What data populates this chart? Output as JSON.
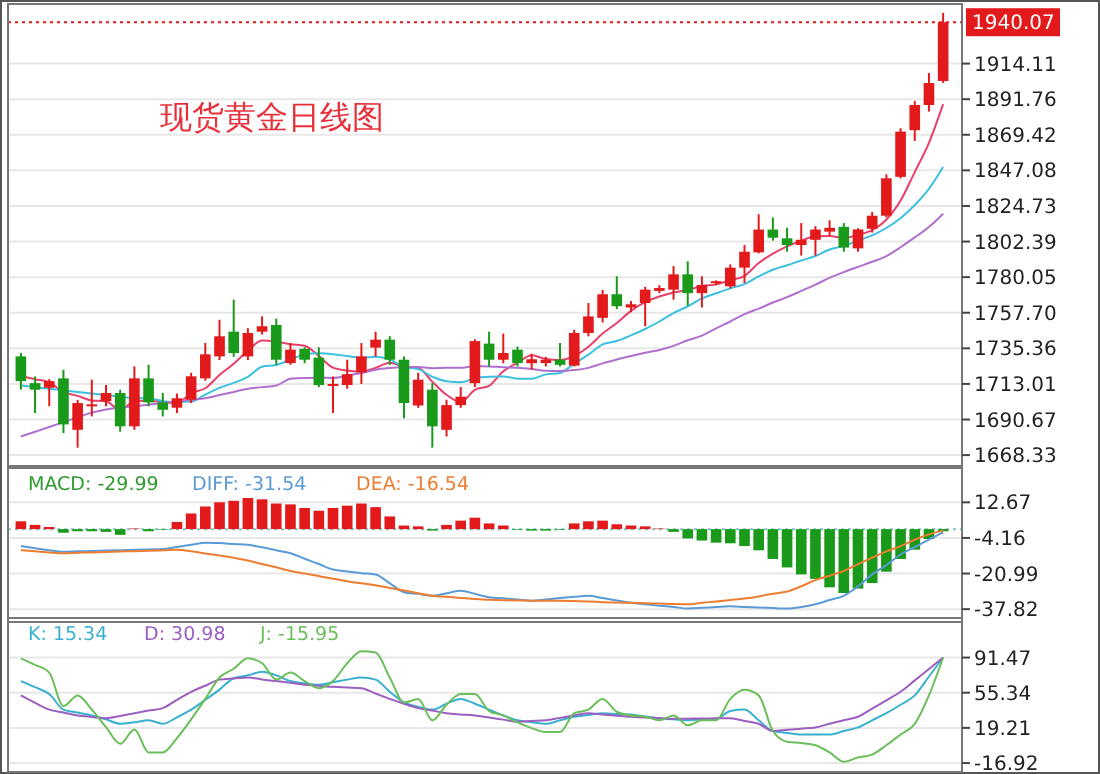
{
  "chart_data": [
    {
      "type": "candlestick",
      "title": "现货黄金日线图",
      "tick_labels": "y",
      "grid": "y",
      "categories": [
        null,
        null,
        null,
        null,
        null,
        null,
        null,
        null,
        null,
        null,
        null,
        null,
        null,
        null,
        null,
        null,
        null,
        null,
        null,
        null,
        null,
        null,
        null,
        null,
        null,
        null,
        null,
        null,
        null,
        null,
        null,
        null,
        null,
        null,
        null,
        null,
        null,
        null,
        null,
        null,
        null,
        null,
        null,
        null,
        null,
        null,
        null,
        null,
        null,
        null,
        null,
        null,
        null,
        null,
        null,
        null,
        null,
        null,
        null,
        null,
        null,
        null,
        null,
        null,
        null,
        null
      ],
      "ohlc": [
        [
          1730.3,
          1732.4,
          1709.4,
          1714.8
        ],
        [
          1713.5,
          1717.7,
          1694.7,
          1709.4
        ],
        [
          1710.6,
          1716,
          1699,
          1714.8
        ],
        [
          1716.5,
          1721.9,
          1682.1,
          1687.6
        ],
        [
          1684.2,
          1703,
          1673,
          1701
        ],
        [
          1699.7,
          1715.7,
          1692.6,
          1700.2
        ],
        [
          1702.2,
          1712.3,
          1699,
          1707.3
        ],
        [
          1707.3,
          1709.4,
          1683,
          1686.4
        ],
        [
          1686.4,
          1724,
          1684.2,
          1716.5
        ],
        [
          1716.5,
          1725,
          1699,
          1701.4
        ],
        [
          1701.4,
          1707.3,
          1692.6,
          1696.8
        ],
        [
          1698.1,
          1707,
          1694.7,
          1704
        ],
        [
          1703.1,
          1720,
          1701,
          1717.8
        ],
        [
          1716.5,
          1738.7,
          1715,
          1731.6
        ],
        [
          1730.3,
          1753.3,
          1728,
          1742.9
        ],
        [
          1745.8,
          1765.9,
          1730,
          1732.4
        ],
        [
          1730.3,
          1748,
          1728,
          1745
        ],
        [
          1745.8,
          1755.4,
          1744,
          1749.2
        ],
        [
          1750,
          1754,
          1725,
          1728.2
        ],
        [
          1726.1,
          1738.7,
          1725,
          1734.5
        ],
        [
          1735,
          1736,
          1726,
          1728.2
        ],
        [
          1729.5,
          1736,
          1711,
          1712.3
        ],
        [
          1712.3,
          1717.7,
          1694.7,
          1713
        ],
        [
          1712.3,
          1728.2,
          1710,
          1719.1
        ],
        [
          1720.3,
          1738.7,
          1713,
          1730.3
        ],
        [
          1735.8,
          1745.8,
          1730.3,
          1740.8
        ],
        [
          1740.8,
          1743,
          1725,
          1728.2
        ],
        [
          1728.2,
          1730.3,
          1691.4,
          1701
        ],
        [
          1699.5,
          1720,
          1698,
          1715.7
        ],
        [
          1709.4,
          1713.5,
          1673,
          1686.4
        ],
        [
          1684.2,
          1703.1,
          1680,
          1699.7
        ],
        [
          1699.7,
          1711,
          1698,
          1705
        ],
        [
          1713.5,
          1741,
          1711,
          1739.9
        ],
        [
          1738.3,
          1745.8,
          1724,
          1728.2
        ],
        [
          1728.2,
          1744.6,
          1726,
          1732.4
        ],
        [
          1734.5,
          1736.5,
          1724,
          1726.1
        ],
        [
          1726,
          1732,
          1722,
          1728.5
        ],
        [
          1726.1,
          1730,
          1724,
          1728.2
        ],
        [
          1728.2,
          1738.7,
          1724,
          1725
        ],
        [
          1724.5,
          1747,
          1724,
          1745
        ],
        [
          1745,
          1763.8,
          1742.9,
          1755.4
        ],
        [
          1754.5,
          1772,
          1751.6,
          1769.3
        ],
        [
          1769.3,
          1780.6,
          1760,
          1761.8
        ],
        [
          1761,
          1765,
          1758,
          1763
        ],
        [
          1763.8,
          1774,
          1749.2,
          1772.2
        ],
        [
          1771.4,
          1775,
          1770,
          1773.2
        ],
        [
          1772.2,
          1787,
          1765.9,
          1781.8
        ],
        [
          1781.8,
          1790,
          1762,
          1770
        ],
        [
          1770,
          1780.6,
          1761,
          1775.1
        ],
        [
          1776.5,
          1778,
          1775,
          1777.5
        ],
        [
          1774.3,
          1788,
          1773,
          1786
        ],
        [
          1786,
          1800.2,
          1776.3,
          1796
        ],
        [
          1795.6,
          1819.5,
          1795,
          1809.9
        ],
        [
          1809.9,
          1817.5,
          1803,
          1804.8
        ],
        [
          1804.4,
          1811,
          1796,
          1800.2
        ],
        [
          1800.2,
          1814,
          1793.6,
          1803.5
        ],
        [
          1803.5,
          1812,
          1793.6,
          1809.9
        ],
        [
          1808.6,
          1815.7,
          1806,
          1811
        ],
        [
          1811.6,
          1814,
          1796,
          1798.6
        ],
        [
          1798.1,
          1810.8,
          1796,
          1810
        ],
        [
          1810.4,
          1821,
          1808,
          1818.6
        ],
        [
          1818.6,
          1844.6,
          1817.5,
          1842.1
        ],
        [
          1843,
          1873.5,
          1842,
          1871.4
        ],
        [
          1872.3,
          1890.6,
          1865.5,
          1888.1
        ],
        [
          1888.1,
          1908.2,
          1884,
          1901.9
        ],
        [
          1903.2,
          1945.9,
          1902,
          1940.07
        ]
      ],
      "colors": [
        "#1a9a1a",
        "#1a9a1a",
        "#e31a1c",
        "#1a9a1a",
        "#e31a1c",
        "#e31a1c",
        "#e31a1c",
        "#1a9a1a",
        "#e31a1c",
        "#1a9a1a",
        "#1a9a1a",
        "#e31a1c",
        "#e31a1c",
        "#e31a1c",
        "#e31a1c",
        "#1a9a1a",
        "#e31a1c",
        "#e31a1c",
        "#1a9a1a",
        "#e31a1c",
        "#1a9a1a",
        "#1a9a1a",
        "#e31a1c",
        "#e31a1c",
        "#e31a1c",
        "#e31a1c",
        "#1a9a1a",
        "#1a9a1a",
        "#e31a1c",
        "#1a9a1a",
        "#e31a1c",
        "#e31a1c",
        "#e31a1c",
        "#1a9a1a",
        "#e31a1c",
        "#1a9a1a",
        "#e31a1c",
        "#e31a1c",
        "#1a9a1a",
        "#e31a1c",
        "#e31a1c",
        "#e31a1c",
        "#1a9a1a",
        "#e31a1c",
        "#e31a1c",
        "#e31a1c",
        "#e31a1c",
        "#1a9a1a",
        "#e31a1c",
        "#e31a1c",
        "#e31a1c",
        "#e31a1c",
        "#e31a1c",
        "#1a9a1a",
        "#1a9a1a",
        "#e31a1c",
        "#e31a1c",
        "#e31a1c",
        "#1a9a1a",
        "#e31a1c",
        "#e31a1c",
        "#e31a1c",
        "#e31a1c",
        "#e31a1c",
        "#e31a1c",
        "#e31a1c"
      ],
      "series": [
        {
          "type": "line",
          "color": "#e8406a",
          "values": [
            1718,
            1716,
            1714,
            1708,
            1705.5,
            1702.6,
            1702.2,
            1696.5,
            1702.3,
            1702.4,
            1701.7,
            1701,
            1707.3,
            1710.3,
            1718.6,
            1725.7,
            1733.9,
            1740.2,
            1739.5,
            1737.9,
            1737,
            1730.5,
            1723.2,
            1721.4,
            1720.6,
            1723.1,
            1726.3,
            1723.9,
            1723.2,
            1714.4,
            1706.2,
            1701.6,
            1709.3,
            1711.8,
            1721,
            1726.3,
            1731,
            1728.7,
            1728,
            1730.6,
            1736.4,
            1744.6,
            1751.3,
            1758.9,
            1764.3,
            1767.9,
            1770.4,
            1772,
            1774.5,
            1775.5,
            1778.1,
            1780.9,
            1788.9,
            1794.8,
            1799.4,
            1802.9,
            1805.7,
            1805.9,
            1804.6,
            1806.6,
            1809.6,
            1816.1,
            1828.1,
            1846,
            1864.4,
            1888.7
          ]
        },
        {
          "type": "line",
          "color": "#3cc0e0",
          "values": [
            1712,
            1711,
            1710,
            1709,
            1708,
            1707,
            1706,
            1705,
            1704,
            1704,
            1702.2,
            1701.6,
            1701.9,
            1706.3,
            1710.5,
            1713.7,
            1717.5,
            1723.8,
            1724.9,
            1728.3,
            1731.4,
            1732.2,
            1731.7,
            1730.5,
            1729.3,
            1730.1,
            1728.4,
            1723.6,
            1722.3,
            1717.5,
            1714.7,
            1714,
            1716.6,
            1717.5,
            1717.7,
            1716.3,
            1716.3,
            1719,
            1719.9,
            1725.8,
            1731.4,
            1737.8,
            1740,
            1743.5,
            1747.5,
            1752.2,
            1757.5,
            1761.7,
            1766.7,
            1769.9,
            1773,
            1775.7,
            1780.5,
            1784.7,
            1787.5,
            1790.5,
            1793.3,
            1797.4,
            1799.7,
            1803,
            1806.3,
            1810.9,
            1817,
            1825.3,
            1835.5,
            1849.2
          ]
        },
        {
          "type": "line",
          "color": "#b070d0",
          "values": [
            1680,
            1683,
            1686,
            1689,
            1692,
            1695,
            1697,
            1698,
            1699,
            1700,
            1701,
            1702,
            1703,
            1704,
            1706,
            1708,
            1710,
            1711,
            1712,
            1716.2,
            1716.8,
            1716.9,
            1716.8,
            1718.4,
            1719.9,
            1721.9,
            1723,
            1723.7,
            1723.6,
            1722.9,
            1723.1,
            1723.1,
            1724.2,
            1724,
            1723.5,
            1723.2,
            1722.4,
            1721.3,
            1721.1,
            1721.7,
            1723.1,
            1725.9,
            1728.3,
            1730.5,
            1732.6,
            1734.3,
            1736.9,
            1740.4,
            1743.3,
            1747.9,
            1752.2,
            1756.8,
            1760.3,
            1764.1,
            1767.5,
            1771.4,
            1775.4,
            1779.6,
            1783.2,
            1786.5,
            1789.7,
            1793.3,
            1798.8,
            1805,
            1811.5,
            1819.9
          ]
        }
      ],
      "ylim": [
        1664,
        1949
      ],
      "yticks": [
        1668.33,
        1690.67,
        1713.01,
        1735.36,
        {
          "value": 1757.7,
          "label": "1757.70"
        },
        1780.05,
        1802.39,
        1824.73,
        1847.08,
        1869.42,
        1891.76,
        1914.11
      ],
      "ref_lines": [
        {
          "axis": "y",
          "value": 1940.07,
          "label": "1940.07",
          "color": "#e31a1c",
          "line_style": "dotted"
        }
      ]
    },
    {
      "type": "bar",
      "tick_labels": "y",
      "grid": "y",
      "legend": "top left",
      "categories": [
        null,
        null,
        null,
        null,
        null,
        null,
        null,
        null,
        null,
        null,
        null,
        null,
        null,
        null,
        null,
        null,
        null,
        null,
        null,
        null,
        null,
        null,
        null,
        null,
        null,
        null,
        null,
        null,
        null,
        null,
        null,
        null,
        null,
        null,
        null,
        null,
        null,
        null,
        null,
        null,
        null,
        null,
        null,
        null,
        null,
        null,
        null,
        null,
        null,
        null,
        null,
        null,
        null,
        null,
        null,
        null,
        null,
        null,
        null,
        null,
        null,
        null,
        null,
        null,
        null,
        null
      ],
      "series": [
        {
          "name": "MACD: -29.99",
          "type": "bar",
          "color": "#2e9a2e",
          "values": [
            3.7,
            2,
            1,
            -1.7,
            -1,
            -1,
            -1.3,
            -2.7,
            0.3,
            -1,
            -0.3,
            3.4,
            7.4,
            10.7,
            12.7,
            13.4,
            14.7,
            14.1,
            12.1,
            11.7,
            10,
            8.7,
            10,
            11.1,
            12.1,
            10.4,
            6,
            1.7,
            1.3,
            -0.7,
            2,
            4,
            5.4,
            2.7,
            1.7,
            -0.3,
            -0.7,
            -0.7,
            -0.3,
            2.7,
            3.7,
            4,
            2.3,
            1.7,
            1.3,
            0.3,
            -1.3,
            -4.4,
            -5.4,
            -6.4,
            -6.7,
            -8,
            -10,
            -14.1,
            -18.1,
            -21.4,
            -23.5,
            -27.5,
            -30.2,
            -28.1,
            -25.5,
            -20.1,
            -14.1,
            -9.7,
            -4.7,
            -1
          ],
          "colors": [
            "#e31a1c",
            "#e31a1c",
            "#e31a1c",
            "#1a9a1a",
            "#1a9a1a",
            "#1a9a1a",
            "#1a9a1a",
            "#1a9a1a",
            "#e31a1c",
            "#1a9a1a",
            "#1a9a1a",
            "#e31a1c",
            "#e31a1c",
            "#e31a1c",
            "#e31a1c",
            "#e31a1c",
            "#e31a1c",
            "#e31a1c",
            "#e31a1c",
            "#e31a1c",
            "#e31a1c",
            "#e31a1c",
            "#e31a1c",
            "#e31a1c",
            "#e31a1c",
            "#e31a1c",
            "#e31a1c",
            "#e31a1c",
            "#e31a1c",
            "#1a9a1a",
            "#e31a1c",
            "#e31a1c",
            "#e31a1c",
            "#e31a1c",
            "#e31a1c",
            "#1a9a1a",
            "#1a9a1a",
            "#1a9a1a",
            "#1a9a1a",
            "#e31a1c",
            "#e31a1c",
            "#e31a1c",
            "#e31a1c",
            "#e31a1c",
            "#e31a1c",
            "#e31a1c",
            "#1a9a1a",
            "#1a9a1a",
            "#1a9a1a",
            "#1a9a1a",
            "#1a9a1a",
            "#1a9a1a",
            "#1a9a1a",
            "#1a9a1a",
            "#1a9a1a",
            "#1a9a1a",
            "#1a9a1a",
            "#1a9a1a",
            "#1a9a1a",
            "#1a9a1a",
            "#1a9a1a",
            "#1a9a1a",
            "#1a9a1a",
            "#1a9a1a",
            "#1a9a1a",
            "#1a9a1a"
          ]
        },
        {
          "name": "DIFF: -31.54",
          "type": "line",
          "color": "#5b9bd5",
          "values": [
            -8,
            -9,
            -10,
            -10.7,
            -10.5,
            -10.3,
            -10.1,
            -10,
            -9.8,
            -9.6,
            -9.4,
            -8.4,
            -7.4,
            -6.4,
            -6.6,
            -7,
            -7.4,
            -8.6,
            -10,
            -11.4,
            -14,
            -16.5,
            -19.1,
            -20,
            -20.8,
            -21.4,
            -25.6,
            -29.8,
            -30.6,
            -31.5,
            -30.3,
            -29.1,
            -30.6,
            -32.2,
            -32.7,
            -33.3,
            -33.8,
            -33.2,
            -32.6,
            -32,
            -31.5,
            -32.6,
            -33.7,
            -34.8,
            -35.5,
            -36.2,
            -36.8,
            -37.5,
            -37.2,
            -36.8,
            -36.5,
            -36.8,
            -37,
            -37.3,
            -37.5,
            -36.8,
            -35.5,
            -33.5,
            -31.5,
            -27,
            -21.4,
            -17,
            -12,
            -8.5,
            -5,
            -1.5
          ]
        },
        {
          "name": "DEA: -16.54",
          "type": "line",
          "color": "#ed7d31",
          "values": [
            -10,
            -10.5,
            -11,
            -11.4,
            -11.2,
            -11,
            -10.8,
            -10.6,
            -10.4,
            -10.2,
            -10,
            -9.7,
            -10.5,
            -11.5,
            -12.5,
            -13.5,
            -14.8,
            -16.5,
            -18,
            -19.8,
            -21,
            -22.2,
            -23.4,
            -24.6,
            -25.6,
            -26.5,
            -27.8,
            -29,
            -30.3,
            -31.5,
            -32,
            -32.5,
            -33,
            -33.4,
            -33.6,
            -33.7,
            -33.8,
            -33.8,
            -33.8,
            -34,
            -34.2,
            -34.5,
            -34.7,
            -34.8,
            -35,
            -35.2,
            -35.4,
            -35.5,
            -34.8,
            -34.2,
            -33.5,
            -32.8,
            -31.8,
            -30.5,
            -29.5,
            -27,
            -24.1,
            -22,
            -19.8,
            -16.5,
            -13.5,
            -10.5,
            -8,
            -5,
            -2.5,
            -0.7
          ]
        }
      ],
      "ylim": [
        -42,
        27
      ],
      "yticks": [
        12.67,
        -4.16,
        -20.99,
        -37.82
      ],
      "ref_lines": [
        {
          "axis": "y",
          "value": 0,
          "color": "#7fc8c8",
          "line_style": "dotted"
        }
      ]
    },
    {
      "type": "line",
      "tick_labels": "y",
      "grid": "y",
      "legend": "top left",
      "categories": [
        null,
        null,
        null,
        null,
        null,
        null,
        null,
        null,
        null,
        null,
        null,
        null,
        null,
        null,
        null,
        null,
        null,
        null,
        null,
        null,
        null,
        null,
        null,
        null,
        null,
        null,
        null,
        null,
        null,
        null,
        null,
        null,
        null,
        null,
        null,
        null,
        null,
        null,
        null,
        null,
        null,
        null,
        null,
        null,
        null,
        null,
        null,
        null,
        null,
        null,
        null,
        null,
        null,
        null,
        null,
        null,
        null,
        null,
        null,
        null,
        null,
        null,
        null,
        null,
        null,
        null
      ],
      "series": [
        {
          "name": "K: 15.34",
          "color": "#3ab0d0",
          "values": [
            67.3,
            61,
            54,
            38,
            35,
            32,
            28,
            23.4,
            25,
            27,
            23.4,
            30,
            38,
            48,
            58.5,
            70.2,
            73.2,
            76.8,
            73.2,
            67.3,
            65,
            63.6,
            66,
            68.8,
            71,
            68.8,
            56.3,
            45.3,
            41,
            38,
            44,
            49,
            44,
            38,
            32,
            27,
            25,
            23.4,
            27,
            30.7,
            32.5,
            34.3,
            33.5,
            32.9,
            31,
            29.2,
            28,
            27,
            27.8,
            28.5,
            36.5,
            38,
            27,
            16,
            14,
            12.4,
            12.4,
            12.4,
            16,
            19.7,
            27,
            34.3,
            43,
            52.6,
            72,
            91.5
          ]
        },
        {
          "name": "D: 30.98",
          "color": "#9a5fc0",
          "values": [
            52.6,
            45,
            38,
            35,
            32,
            30.5,
            29.2,
            31.5,
            34.3,
            37,
            39.5,
            48,
            56.3,
            62.5,
            68.8,
            70,
            71,
            69,
            67.3,
            65.5,
            63.6,
            62.5,
            61.4,
            60.7,
            60,
            54.5,
            49,
            44,
            39.5,
            37,
            34.3,
            33,
            32,
            29.8,
            27.7,
            25.6,
            26.3,
            27,
            29.5,
            32,
            34.3,
            33,
            31.8,
            30.7,
            30,
            29.2,
            28.5,
            28.7,
            28.9,
            29,
            29.2,
            26.3,
            23.4,
            16,
            17.2,
            18.4,
            19.7,
            23.4,
            27,
            30.7,
            39,
            47.5,
            56.3,
            68,
            79.8,
            91.5
          ]
        },
        {
          "name": "J: -15.95",
          "color": "#6abf5a",
          "values": [
            90.7,
            84,
            76,
            41.6,
            52.6,
            38,
            20,
            2.8,
            17.5,
            -6,
            -6,
            8.7,
            28,
            49,
            71,
            80,
            90.7,
            85.6,
            68.8,
            76,
            67.3,
            60,
            67.3,
            85.6,
            98,
            96.6,
            71,
            45.3,
            49,
            27,
            43,
            54,
            54,
            36.5,
            32,
            24.8,
            19,
            14.9,
            14.9,
            34.3,
            38,
            49,
            35.8,
            32,
            30.7,
            27,
            32,
            21.9,
            27,
            27,
            49,
            58.5,
            52.6,
            16,
            5,
            3.6,
            1.4,
            -6,
            -15.5,
            -11.1,
            -8.2,
            1.4,
            12.4,
            23.4,
            52.6,
            91.5
          ]
        }
      ],
      "ylim": [
        -22,
        128
      ],
      "yticks": [
        91.47,
        55.34,
        19.21,
        -16.92
      ]
    }
  ]
}
